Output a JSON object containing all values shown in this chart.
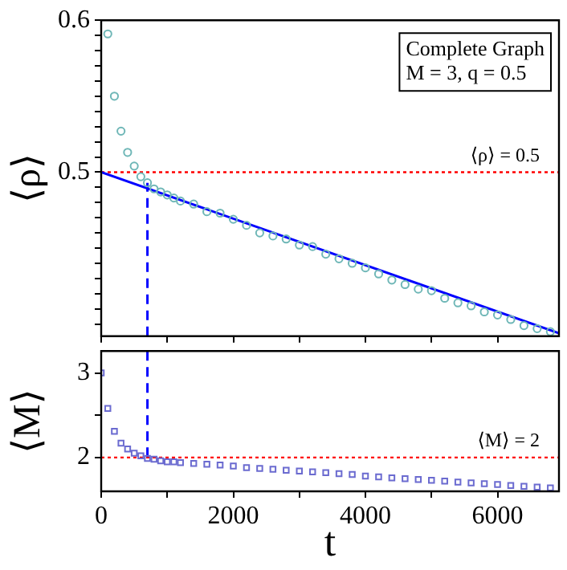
{
  "chart_data": [
    {
      "type": "scatter",
      "ylabel": "⟨ρ⟩",
      "annotations": [
        "Complete Graph",
        "M = 3, q = 0.5"
      ],
      "xlim": [
        0,
        6930
      ],
      "ylim": [
        0.392,
        0.6
      ],
      "tick_labels": "y",
      "grid": false,
      "legend": false,
      "xticks": [
        {
          "value": 0,
          "label": null
        },
        {
          "value": 1000,
          "label": null
        },
        {
          "value": 2000,
          "label": null
        },
        {
          "value": 3000,
          "label": null
        },
        {
          "value": 4000,
          "label": null
        },
        {
          "value": 5000,
          "label": null
        },
        {
          "value": 6000,
          "label": null
        }
      ],
      "yticks": [
        {
          "value": 0.4,
          "label": null
        },
        {
          "value": 0.41,
          "label": null
        },
        {
          "value": 0.42,
          "label": null
        },
        {
          "value": 0.43,
          "label": null
        },
        {
          "value": 0.44,
          "label": null
        },
        {
          "value": 0.45,
          "label": null
        },
        {
          "value": 0.46,
          "label": null
        },
        {
          "value": 0.47,
          "label": null
        },
        {
          "value": 0.48,
          "label": null
        },
        {
          "value": 0.49,
          "label": null
        },
        0.5,
        {
          "value": 0.51,
          "label": null
        },
        {
          "value": 0.52,
          "label": null
        },
        {
          "value": 0.53,
          "label": null
        },
        {
          "value": 0.54,
          "label": null
        },
        {
          "value": 0.55,
          "label": null
        },
        {
          "value": 0.56,
          "label": null
        },
        {
          "value": 0.57,
          "label": null
        },
        {
          "value": 0.58,
          "label": null
        },
        {
          "value": 0.59,
          "label": null
        },
        0.6
      ],
      "ref_lines": [
        {
          "axis": "y",
          "value": 0.5,
          "label": "⟨ρ⟩ = 0.5",
          "color": "#ff0000",
          "line_style": "dotted"
        }
      ],
      "series": [
        {
          "type": "scatter",
          "marker": "circle",
          "color": "#6fb7b7",
          "x": [
            100,
            200,
            300,
            400,
            500,
            600,
            700,
            800,
            900,
            1000,
            1100,
            1200,
            1400,
            1600,
            1800,
            2000,
            2200,
            2400,
            2600,
            2800,
            3000,
            3200,
            3400,
            3600,
            3800,
            4000,
            4200,
            4400,
            4600,
            4800,
            5000,
            5200,
            5400,
            5600,
            5800,
            6000,
            6200,
            6400,
            6600,
            6800
          ],
          "values": [
            0.591,
            0.55,
            0.527,
            0.513,
            0.504,
            0.497,
            0.493,
            0.489,
            0.487,
            0.485,
            0.483,
            0.481,
            0.479,
            0.474,
            0.473,
            0.469,
            0.465,
            0.46,
            0.458,
            0.456,
            0.452,
            0.451,
            0.446,
            0.443,
            0.44,
            0.437,
            0.433,
            0.429,
            0.426,
            0.423,
            0.422,
            0.417,
            0.414,
            0.412,
            0.408,
            0.406,
            0.403,
            0.399,
            0.397,
            0.395
          ]
        },
        {
          "type": "line",
          "marker": "none",
          "line_style": "solid",
          "color": "#0000ff",
          "x": [
            0,
            6930
          ],
          "values": [
            0.5,
            0.394
          ]
        },
        {
          "type": "line",
          "marker": "none",
          "line_style": "dashed",
          "color": "#0000ff",
          "x": [
            700,
            700
          ],
          "values": [
            0.392,
            0.493
          ]
        }
      ]
    },
    {
      "type": "scatter",
      "xlabel": "t",
      "ylabel": "⟨M⟩",
      "xlim": [
        0,
        6930
      ],
      "ylim": [
        1.6,
        3.26
      ],
      "grid": false,
      "legend": false,
      "xticks": [
        0,
        {
          "value": 1000,
          "label": null
        },
        2000,
        {
          "value": 3000,
          "label": null
        },
        4000,
        {
          "value": 5000,
          "label": null
        },
        6000
      ],
      "yticks": [
        2,
        {
          "value": 2.5,
          "label": null
        },
        3
      ],
      "ref_lines": [
        {
          "axis": "y",
          "value": 2,
          "label": "⟨M⟩ = 2",
          "color": "#ff0000",
          "line_style": "dotted"
        }
      ],
      "series": [
        {
          "type": "scatter",
          "marker": "square",
          "color": "#6b6bd0",
          "x": [
            0,
            100,
            200,
            300,
            400,
            500,
            600,
            700,
            800,
            900,
            1000,
            1100,
            1200,
            1400,
            1600,
            1800,
            2000,
            2200,
            2400,
            2600,
            2800,
            3000,
            3200,
            3400,
            3600,
            3800,
            4000,
            4200,
            4400,
            4600,
            4800,
            5000,
            5200,
            5400,
            5600,
            5800,
            6000,
            6200,
            6400,
            6600,
            6800
          ],
          "values": [
            3.0,
            2.58,
            2.31,
            2.17,
            2.1,
            2.05,
            2.02,
            1.99,
            1.98,
            1.96,
            1.95,
            1.95,
            1.94,
            1.93,
            1.92,
            1.91,
            1.9,
            1.88,
            1.87,
            1.86,
            1.85,
            1.84,
            1.83,
            1.82,
            1.81,
            1.8,
            1.78,
            1.77,
            1.76,
            1.75,
            1.74,
            1.73,
            1.72,
            1.71,
            1.7,
            1.69,
            1.68,
            1.67,
            1.66,
            1.65,
            1.64
          ]
        },
        {
          "type": "line",
          "marker": "none",
          "line_style": "dashed",
          "color": "#0000ff",
          "x": [
            700,
            700
          ],
          "values": [
            3.26,
            2
          ]
        }
      ]
    }
  ]
}
